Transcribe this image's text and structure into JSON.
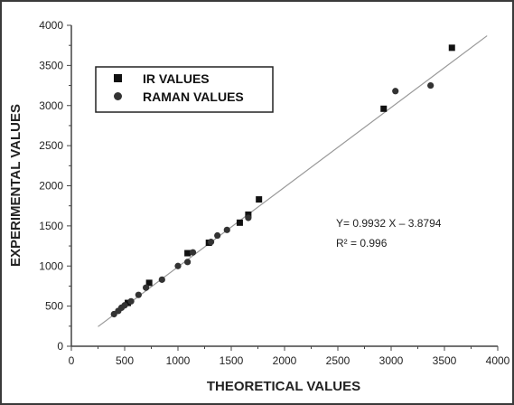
{
  "chart_data": {
    "type": "scatter",
    "xlabel": "THEORETICAL VALUES",
    "ylabel": "EXPERIMENTAL VALUES",
    "xlim": [
      0,
      4000
    ],
    "ylim": [
      0,
      4000
    ],
    "x_ticks": [
      "0",
      "500",
      "1000",
      "1500",
      "2000",
      "2500",
      "3000",
      "3500",
      "4000"
    ],
    "y_ticks": [
      "0",
      "500",
      "1000",
      "1500",
      "2000",
      "2500",
      "3000",
      "3500",
      "4000"
    ],
    "grid": false,
    "legend_position": "top-left",
    "series": [
      {
        "name": "IR VALUES",
        "marker": "square",
        "color": "#111111",
        "points": [
          [
            530,
            540
          ],
          [
            730,
            790
          ],
          [
            1090,
            1160
          ],
          [
            1290,
            1290
          ],
          [
            1580,
            1540
          ],
          [
            1660,
            1640
          ],
          [
            1760,
            1830
          ],
          [
            2930,
            2960
          ],
          [
            3570,
            3720
          ]
        ]
      },
      {
        "name": "RAMAN VALUES",
        "marker": "circle",
        "color": "#333333",
        "points": [
          [
            400,
            400
          ],
          [
            440,
            440
          ],
          [
            470,
            480
          ],
          [
            500,
            510
          ],
          [
            560,
            560
          ],
          [
            630,
            640
          ],
          [
            700,
            730
          ],
          [
            850,
            830
          ],
          [
            1000,
            1000
          ],
          [
            1090,
            1050
          ],
          [
            1140,
            1170
          ],
          [
            1310,
            1300
          ],
          [
            1370,
            1380
          ],
          [
            1460,
            1450
          ],
          [
            1660,
            1600
          ],
          [
            3040,
            3180
          ],
          [
            3370,
            3250
          ]
        ]
      }
    ],
    "fit_line": {
      "x": [
        250,
        3900
      ],
      "slope": 0.9932,
      "intercept": -3.8794,
      "color": "#999999"
    },
    "annotations": [
      "Y= 0.9932 X – 3.8794",
      "R² = 0.996"
    ]
  }
}
